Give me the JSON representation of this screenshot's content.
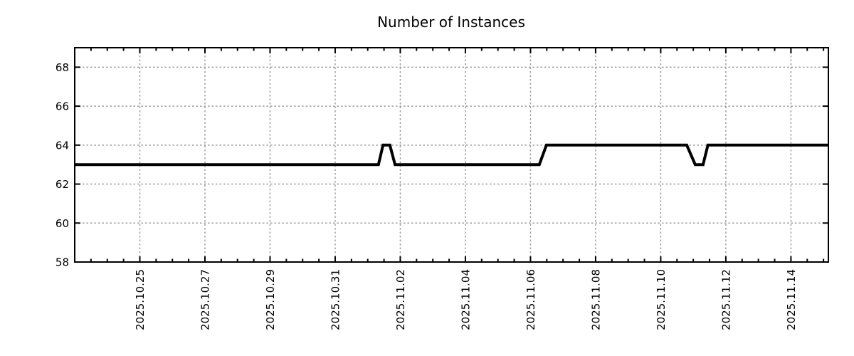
{
  "chart_data": {
    "type": "line",
    "title": "Number of Instances",
    "xlabel": "",
    "ylabel": "",
    "ylim": [
      58,
      69
    ],
    "xlim_days_from_2025_10_25": [
      -2.0,
      21.15
    ],
    "grid": "dashed-major",
    "legend": "none",
    "line_color": "#000000",
    "grid_color": "#9b9b9b",
    "text_color": "#000000",
    "background": "#ffffff",
    "y_ticks": [
      58,
      60,
      62,
      64,
      66,
      68
    ],
    "x_minor_step_days": 0.5,
    "x_ticks": [
      {
        "day": 0,
        "label": "2025.10.25"
      },
      {
        "day": 2,
        "label": "2025.10.27"
      },
      {
        "day": 4,
        "label": "2025.10.29"
      },
      {
        "day": 6,
        "label": "2025.10.31"
      },
      {
        "day": 8,
        "label": "2025.11.02"
      },
      {
        "day": 10,
        "label": "2025.11.04"
      },
      {
        "day": 12,
        "label": "2025.11.06"
      },
      {
        "day": 14,
        "label": "2025.11.08"
      },
      {
        "day": 16,
        "label": "2025.11.10"
      },
      {
        "day": 18,
        "label": "2025.11.12"
      },
      {
        "day": 20,
        "label": "2025.11.14"
      }
    ],
    "series": [
      {
        "name": "number-of-instances",
        "points": [
          {
            "date": "2025-10-23 00:00",
            "day": -2.0,
            "value": 63
          },
          {
            "date": "2025-11-01 08:00",
            "day": 7.33,
            "value": 63
          },
          {
            "date": "2025-11-01 11:00",
            "day": 7.47,
            "value": 64
          },
          {
            "date": "2025-11-01 16:00",
            "day": 7.68,
            "value": 64
          },
          {
            "date": "2025-11-01 20:00",
            "day": 7.84,
            "value": 63
          },
          {
            "date": "2025-11-06 06:00",
            "day": 12.27,
            "value": 63
          },
          {
            "date": "2025-11-06 12:00",
            "day": 12.49,
            "value": 64
          },
          {
            "date": "2025-11-10 19:00",
            "day": 16.8,
            "value": 64
          },
          {
            "date": "2025-11-11 01:00",
            "day": 17.06,
            "value": 63
          },
          {
            "date": "2025-11-11 07:00",
            "day": 17.3,
            "value": 63
          },
          {
            "date": "2025-11-11 11:00",
            "day": 17.45,
            "value": 64
          },
          {
            "date": "2025-11-15 04:00",
            "day": 21.15,
            "value": 64
          }
        ]
      }
    ]
  }
}
